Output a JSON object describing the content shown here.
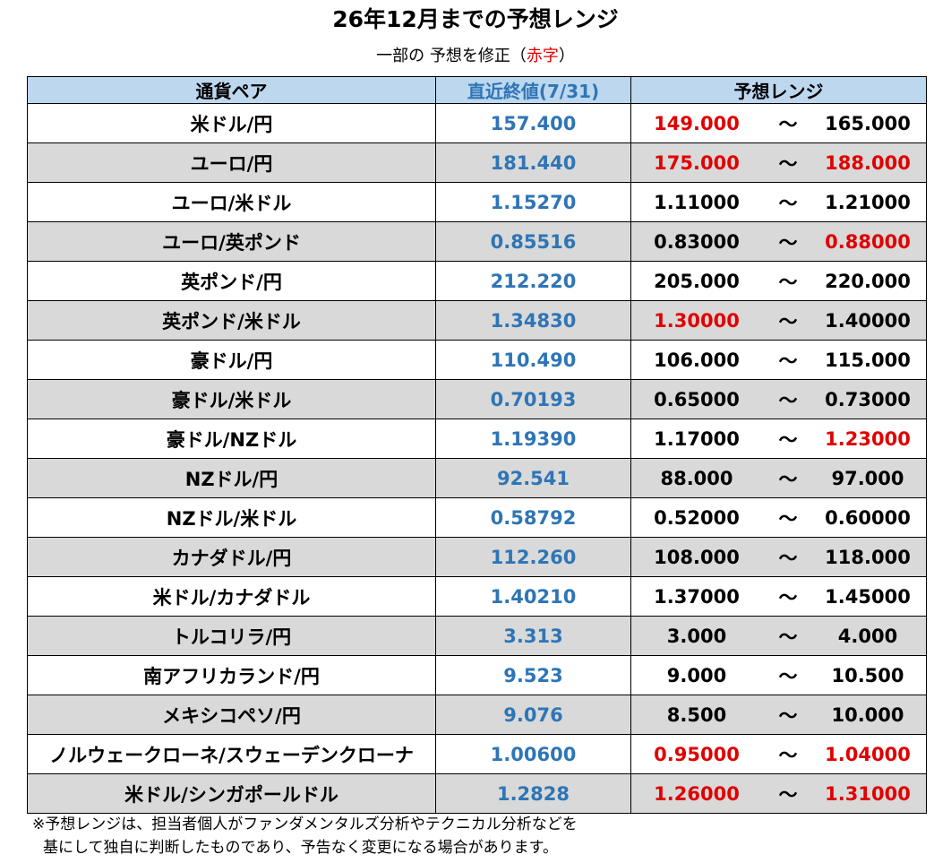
{
  "title": "26年12月までの予想レンジ",
  "subtitle": {
    "prefix": "一部の 予想を修正（",
    "highlight": "赤字",
    "suffix": "）"
  },
  "header": {
    "pair": "通貨ペア",
    "latest": "直近終値(7/31)",
    "range": "予想レンジ"
  },
  "tilde": "～",
  "colors": {
    "header_bg": "#bdd7ee",
    "latest_text": "#2e75b6",
    "revised_text": "#e00000",
    "alt_row_bg": "#d9d9d9"
  },
  "rows": [
    {
      "pair": "米ドル/円",
      "latest": "157.400",
      "low": "149.000",
      "high": "165.000",
      "low_revised": true,
      "high_revised": false
    },
    {
      "pair": "ユーロ/円",
      "latest": "181.440",
      "low": "175.000",
      "high": "188.000",
      "low_revised": true,
      "high_revised": true
    },
    {
      "pair": "ユーロ/米ドル",
      "latest": "1.15270",
      "low": "1.11000",
      "high": "1.21000",
      "low_revised": false,
      "high_revised": false
    },
    {
      "pair": "ユーロ/英ポンド",
      "latest": "0.85516",
      "low": "0.83000",
      "high": "0.88000",
      "low_revised": false,
      "high_revised": true
    },
    {
      "pair": "英ポンド/円",
      "latest": "212.220",
      "low": "205.000",
      "high": "220.000",
      "low_revised": false,
      "high_revised": false
    },
    {
      "pair": "英ポンド/米ドル",
      "latest": "1.34830",
      "low": "1.30000",
      "high": "1.40000",
      "low_revised": true,
      "high_revised": false
    },
    {
      "pair": "豪ドル/円",
      "latest": "110.490",
      "low": "106.000",
      "high": "115.000",
      "low_revised": false,
      "high_revised": false
    },
    {
      "pair": "豪ドル/米ドル",
      "latest": "0.70193",
      "low": "0.65000",
      "high": "0.73000",
      "low_revised": false,
      "high_revised": false
    },
    {
      "pair": "豪ドル/NZドル",
      "latest": "1.19390",
      "low": "1.17000",
      "high": "1.23000",
      "low_revised": false,
      "high_revised": true
    },
    {
      "pair": "NZドル/円",
      "latest": "92.541",
      "low": "88.000",
      "high": "97.000",
      "low_revised": false,
      "high_revised": false
    },
    {
      "pair": "NZドル/米ドル",
      "latest": "0.58792",
      "low": "0.52000",
      "high": "0.60000",
      "low_revised": false,
      "high_revised": false
    },
    {
      "pair": "カナダドル/円",
      "latest": "112.260",
      "low": "108.000",
      "high": "118.000",
      "low_revised": false,
      "high_revised": false
    },
    {
      "pair": "米ドル/カナダドル",
      "latest": "1.40210",
      "low": "1.37000",
      "high": "1.45000",
      "low_revised": false,
      "high_revised": false
    },
    {
      "pair": "トルコリラ/円",
      "latest": "3.313",
      "low": "3.000",
      "high": "4.000",
      "low_revised": false,
      "high_revised": false
    },
    {
      "pair": "南アフリカランド/円",
      "latest": "9.523",
      "low": "9.000",
      "high": "10.500",
      "low_revised": false,
      "high_revised": false
    },
    {
      "pair": "メキシコペソ/円",
      "latest": "9.076",
      "low": "8.500",
      "high": "10.000",
      "low_revised": false,
      "high_revised": false
    },
    {
      "pair": "ノルウェークローネ/スウェーデンクローナ",
      "latest": "1.00600",
      "low": "0.95000",
      "high": "1.04000",
      "low_revised": true,
      "high_revised": true
    },
    {
      "pair": "米ドル/シンガポールドル",
      "latest": "1.2828",
      "low": "1.26000",
      "high": "1.31000",
      "low_revised": true,
      "high_revised": true
    }
  ],
  "notes": [
    "※予想レンジは、担当者個人がファンダメンタルズ分析やテクニカル分析などを",
    "基にして独自に判断したものであり、予告なく変更になる場合があります。"
  ]
}
